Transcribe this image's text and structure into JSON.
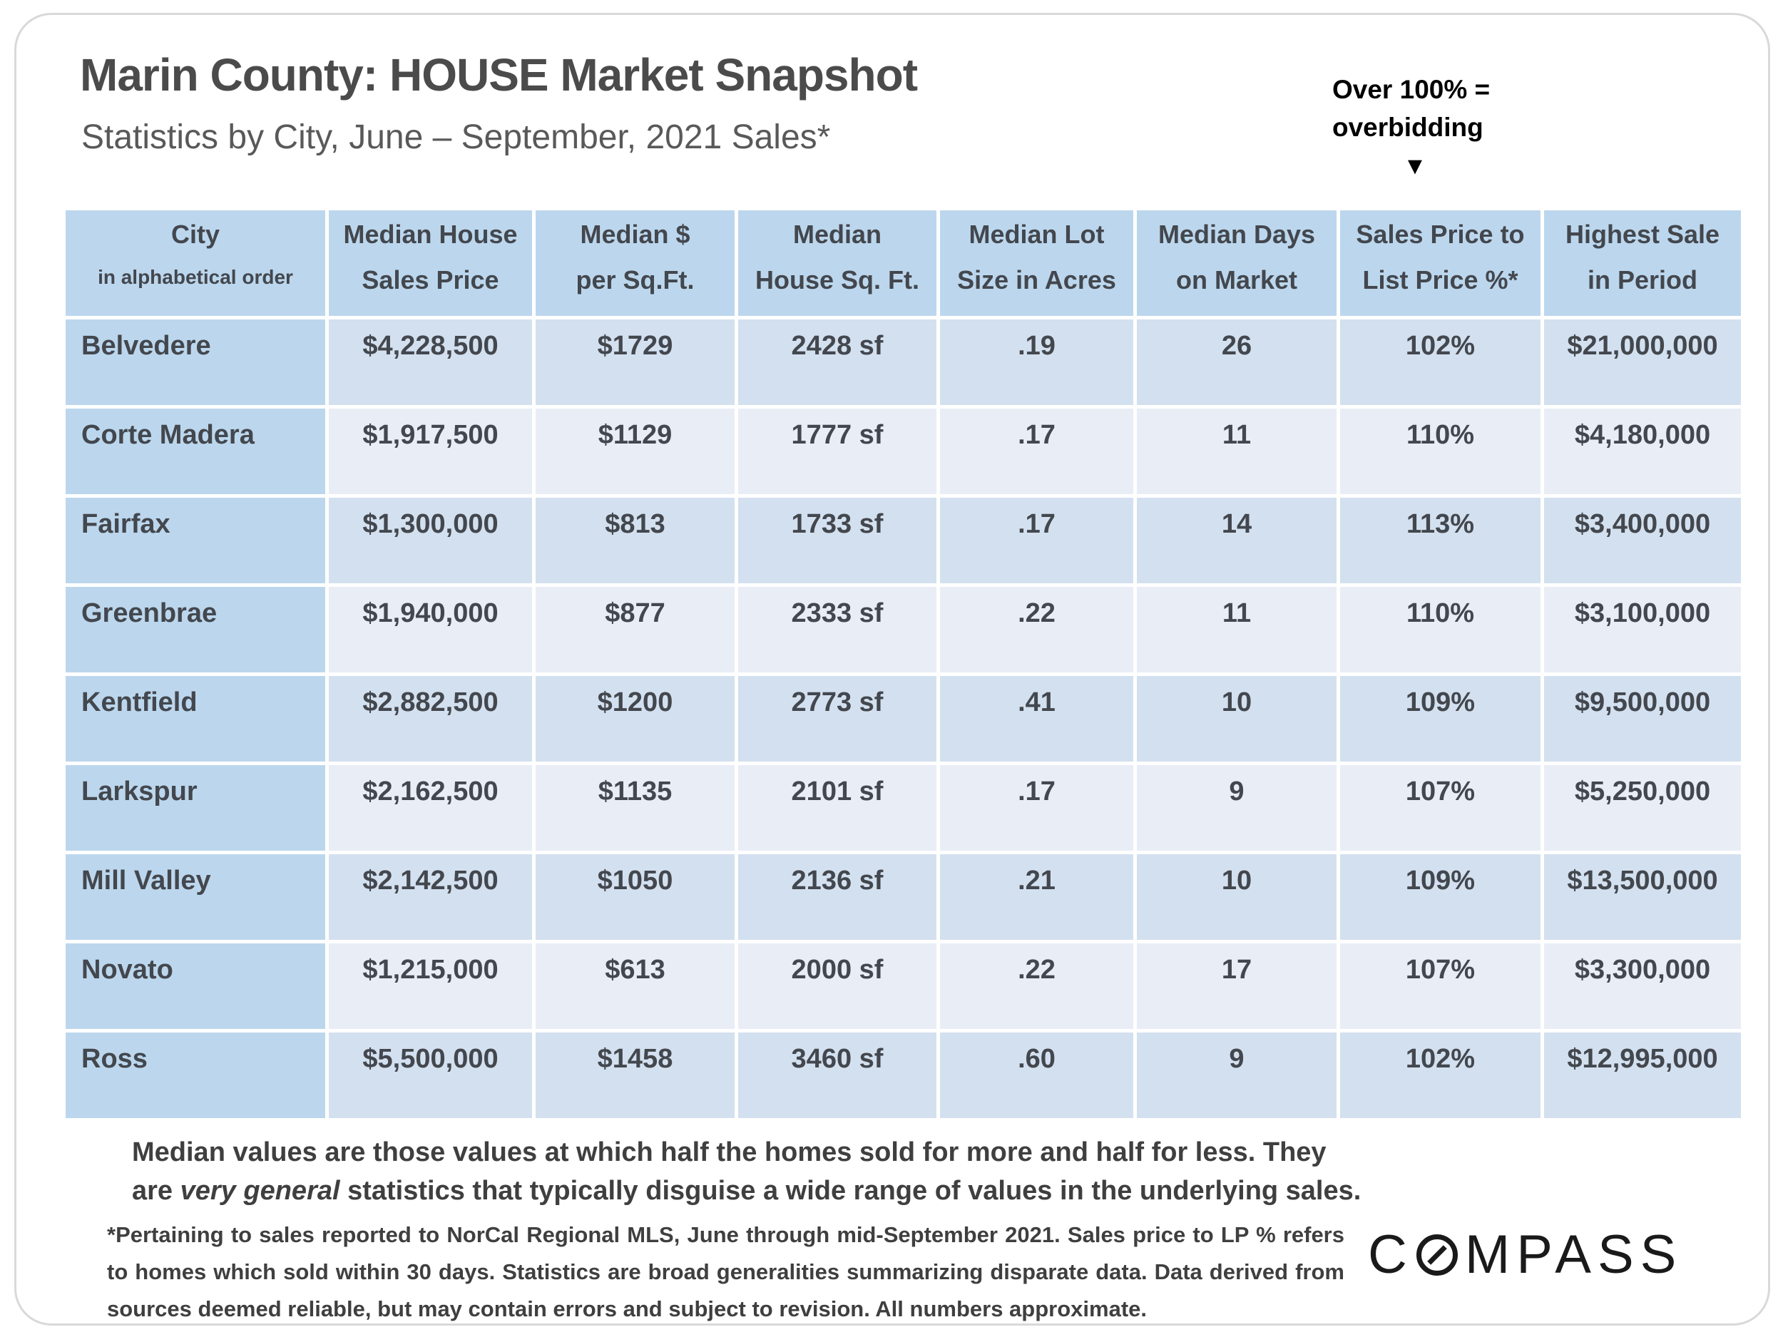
{
  "header": {
    "title": "Marin County: HOUSE Market Snapshot",
    "subtitle": "Statistics by City, June – September, 2021 Sales*",
    "overbid_line1": "Over 100% =",
    "overbid_line2": "overbidding",
    "overbid_arrow": "▼"
  },
  "table": {
    "columns": [
      [
        "City",
        "in alphabetical order"
      ],
      [
        "Median House",
        "Sales Price"
      ],
      [
        "Median $",
        "per Sq.Ft."
      ],
      [
        "Median",
        "House Sq. Ft."
      ],
      [
        "Median Lot",
        "Size in Acres"
      ],
      [
        "Median Days",
        "on Market"
      ],
      [
        "Sales Price to",
        "List Price %*"
      ],
      [
        "Highest Sale",
        "in Period"
      ]
    ],
    "rows": [
      [
        "Belvedere",
        "$4,228,500",
        "$1729",
        "2428 sf",
        ".19",
        "26",
        "102%",
        "$21,000,000"
      ],
      [
        "Corte Madera",
        "$1,917,500",
        "$1129",
        "1777 sf",
        ".17",
        "11",
        "110%",
        "$4,180,000"
      ],
      [
        "Fairfax",
        "$1,300,000",
        "$813",
        "1733 sf",
        ".17",
        "14",
        "113%",
        "$3,400,000"
      ],
      [
        "Greenbrae",
        "$1,940,000",
        "$877",
        "2333 sf",
        ".22",
        "11",
        "110%",
        "$3,100,000"
      ],
      [
        "Kentfield",
        "$2,882,500",
        "$1200",
        "2773 sf",
        ".41",
        "10",
        "109%",
        "$9,500,000"
      ],
      [
        "Larkspur",
        "$2,162,500",
        "$1135",
        "2101 sf",
        ".17",
        "9",
        "107%",
        "$5,250,000"
      ],
      [
        "Mill Valley",
        "$2,142,500",
        "$1050",
        "2136 sf",
        ".21",
        "10",
        "109%",
        "$13,500,000"
      ],
      [
        "Novato",
        "$1,215,000",
        "$613",
        "2000 sf",
        ".22",
        "17",
        "107%",
        "$3,300,000"
      ],
      [
        "Ross",
        "$5,500,000",
        "$1458",
        "3460 sf",
        ".60",
        "9",
        "102%",
        "$12,995,000"
      ]
    ]
  },
  "footnote": {
    "part1": "Median values are those values at which half the homes sold for more and half for less. They are ",
    "italic": "very general",
    "part2": " statistics that typically disguise a wide range of values in the underlying sales."
  },
  "fineprint": "*Pertaining to sales reported to NorCal Regional MLS, June through mid-September 2021. Sales price to LP % refers to homes which sold within 30 days. Statistics are broad generalities summarizing disparate data. Data derived from sources deemed reliable, but may contain errors and subject to revision. All numbers approximate.",
  "logo": {
    "c": "C",
    "rest": "MPASS"
  },
  "colors": {
    "header_blue": "#BCD7ED",
    "row_alt_dark": "#D3E0EF",
    "row_alt_light": "#E9EDF6",
    "text_dark": "#43474E",
    "note_black": "#000000",
    "border_gray": "#D9D9D9"
  }
}
